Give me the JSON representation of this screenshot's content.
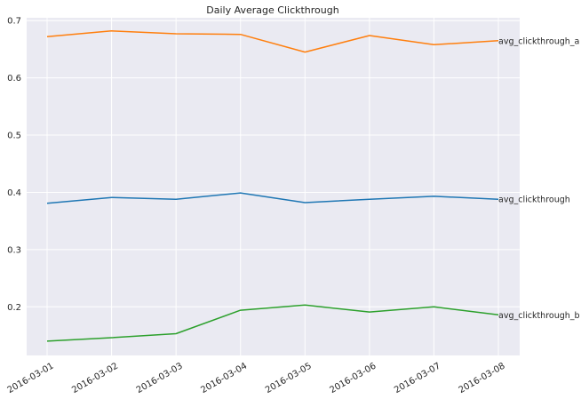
{
  "chart_data": {
    "type": "line",
    "title": "Daily Average Clickthrough",
    "xlabel": "",
    "ylabel": "",
    "x": [
      "2016-03-01",
      "2016-03-02",
      "2016-03-03",
      "2016-03-04",
      "2016-03-05",
      "2016-03-06",
      "2016-03-07",
      "2016-03-08"
    ],
    "ylim": [
      0.115,
      0.705
    ],
    "yticks": [
      "0.2",
      "0.3",
      "0.4",
      "0.5",
      "0.6",
      "0.7"
    ],
    "grid": true,
    "background": "#eaeaf2",
    "series": [
      {
        "name": "avg_clickthrough",
        "color": "#1f77b4",
        "values": [
          0.381,
          0.391,
          0.388,
          0.399,
          0.382,
          0.388,
          0.393,
          0.388
        ]
      },
      {
        "name": "avg_clickthrough_a",
        "color": "#ff7f0e",
        "values": [
          0.672,
          0.682,
          0.677,
          0.676,
          0.645,
          0.674,
          0.658,
          0.665
        ]
      },
      {
        "name": "avg_clickthrough_b",
        "color": "#2ca02c",
        "values": [
          0.14,
          0.146,
          0.153,
          0.194,
          0.203,
          0.191,
          0.2,
          0.186
        ]
      }
    ]
  }
}
